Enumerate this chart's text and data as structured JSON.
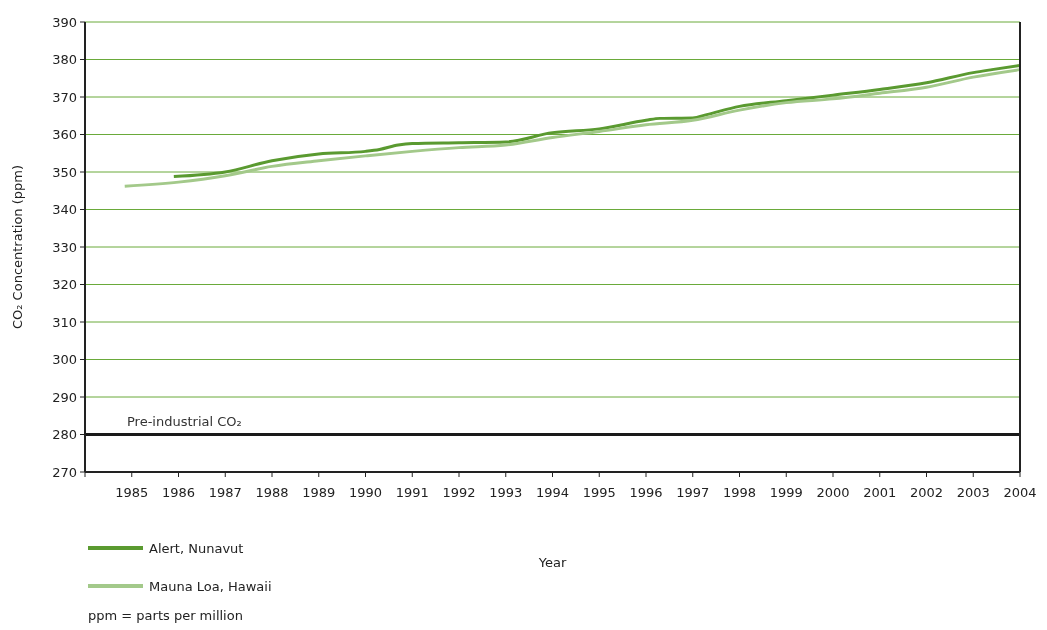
{
  "chart_data": {
    "type": "line",
    "xlabel": "Year",
    "ylabel": "CO₂ Concentration (ppm)",
    "xlim": [
      1984,
      2004
    ],
    "xticks": [
      {
        "value": 1984,
        "label": null
      },
      1985,
      1986,
      1987,
      1988,
      1989,
      1990,
      1991,
      1992,
      1993,
      1994,
      1995,
      1996,
      1997,
      1998,
      1999,
      2000,
      2001,
      2002,
      2003,
      2004
    ],
    "ylim": [
      270,
      390
    ],
    "yticks": [
      270,
      280,
      290,
      300,
      310,
      320,
      330,
      340,
      350,
      360,
      370,
      380,
      390
    ],
    "grid": "y",
    "legend": "bottom",
    "annotations": [
      "ppm = parts per million"
    ],
    "ref_lines": [
      {
        "axis": "y",
        "value": 280,
        "label": "Pre-industrial CO₂",
        "color": "#1a1a1a"
      }
    ],
    "series": [
      {
        "name": "Alert, Nunavut",
        "color": "#5a9a30",
        "x": [
          1985.9,
          1987,
          1988,
          1989,
          1990,
          1990.3,
          1990.7,
          1991,
          1992,
          1993,
          1994,
          1995,
          1996,
          1996.3,
          1997,
          1997.3,
          1998,
          1999,
          2000,
          2001,
          2002,
          2003,
          2003.4,
          2004
        ],
        "values": [
          348.8,
          350,
          353,
          354.8,
          355.5,
          356,
          357.2,
          357.6,
          357.8,
          358,
          360.5,
          361.5,
          363.8,
          364.3,
          364.4,
          365.3,
          367.5,
          369,
          370.5,
          372,
          373.8,
          376.5,
          377.3,
          378.4
        ]
      },
      {
        "name": "Mauna Loa, Hawaii",
        "color": "#a3c98a",
        "x": [
          1984.85,
          1986,
          1987,
          1988,
          1989,
          1990,
          1991,
          1992,
          1993,
          1994,
          1995,
          1996,
          1997,
          1998,
          1999,
          2000,
          2001,
          2002,
          2003,
          2004
        ],
        "values": [
          346.2,
          347.3,
          349,
          351.5,
          353,
          354.3,
          355.5,
          356.5,
          357.2,
          359.2,
          360.8,
          362.6,
          363.8,
          366.5,
          368.5,
          369.5,
          371,
          372.6,
          375.3,
          377.3
        ]
      }
    ]
  }
}
